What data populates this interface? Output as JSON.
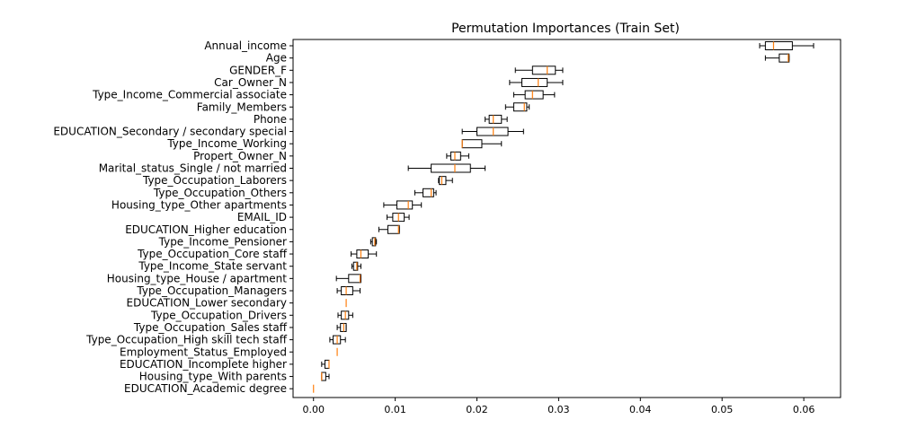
{
  "chart_data": {
    "type": "boxplot",
    "title": "Permutation Importances (Train Set)",
    "xlabel": "",
    "ylabel": "",
    "xlim": [
      -0.0025,
      0.0645
    ],
    "xticks": [
      "0.00",
      "0.01",
      "0.02",
      "0.03",
      "0.04",
      "0.05",
      "0.06"
    ],
    "xtick_values": [
      0.0,
      0.01,
      0.02,
      0.03,
      0.04,
      0.05,
      0.06
    ],
    "orientation": "horizontal",
    "grid": false,
    "colors": {
      "box": "#000000",
      "median": "#ff7f0e"
    },
    "features": [
      {
        "name": "Annual_income",
        "whislo": 0.0546,
        "q1": 0.0553,
        "med": 0.0563,
        "q3": 0.0586,
        "whishi": 0.0612
      },
      {
        "name": "Age",
        "whislo": 0.0553,
        "q1": 0.057,
        "med": 0.0581,
        "q3": 0.0582,
        "whishi": 0.0582
      },
      {
        "name": "GENDER_F",
        "whislo": 0.0247,
        "q1": 0.0268,
        "med": 0.0286,
        "q3": 0.0296,
        "whishi": 0.0305
      },
      {
        "name": "Car_Owner_N",
        "whislo": 0.024,
        "q1": 0.0255,
        "med": 0.0275,
        "q3": 0.0286,
        "whishi": 0.0305
      },
      {
        "name": "Type_Income_Commercial associate",
        "whislo": 0.0245,
        "q1": 0.0259,
        "med": 0.0268,
        "q3": 0.0281,
        "whishi": 0.0295
      },
      {
        "name": "Family_Members",
        "whislo": 0.0235,
        "q1": 0.0245,
        "med": 0.0258,
        "q3": 0.0261,
        "whishi": 0.0264
      },
      {
        "name": "Phone",
        "whislo": 0.021,
        "q1": 0.0215,
        "med": 0.022,
        "q3": 0.023,
        "whishi": 0.0237
      },
      {
        "name": "EDUCATION_Secondary / secondary special",
        "whislo": 0.0182,
        "q1": 0.02,
        "med": 0.022,
        "q3": 0.0238,
        "whishi": 0.0257
      },
      {
        "name": "Type_Income_Working",
        "whislo": 0.0182,
        "q1": 0.0182,
        "med": 0.0182,
        "q3": 0.0206,
        "whishi": 0.023
      },
      {
        "name": "Propert_Owner_N",
        "whislo": 0.0163,
        "q1": 0.0168,
        "med": 0.0173,
        "q3": 0.018,
        "whishi": 0.019
      },
      {
        "name": "Marital_status_Single / not married",
        "whislo": 0.0116,
        "q1": 0.0144,
        "med": 0.0173,
        "q3": 0.0192,
        "whishi": 0.021
      },
      {
        "name": "Type_Occupation_Laborers",
        "whislo": 0.0153,
        "q1": 0.0154,
        "med": 0.0157,
        "q3": 0.0162,
        "whishi": 0.017
      },
      {
        "name": "Type_Occupation_Others",
        "whislo": 0.0124,
        "q1": 0.0134,
        "med": 0.0144,
        "q3": 0.0147,
        "whishi": 0.015
      },
      {
        "name": "Housing_type_Other apartments",
        "whislo": 0.0086,
        "q1": 0.0102,
        "med": 0.0116,
        "q3": 0.0121,
        "whishi": 0.0132
      },
      {
        "name": "EMAIL_ID",
        "whislo": 0.009,
        "q1": 0.0097,
        "med": 0.0104,
        "q3": 0.0111,
        "whishi": 0.0117
      },
      {
        "name": "EDUCATION_Higher education",
        "whislo": 0.008,
        "q1": 0.0091,
        "med": 0.0104,
        "q3": 0.0105,
        "whishi": 0.0105
      },
      {
        "name": "Type_Income_Pensioner",
        "whislo": 0.007,
        "q1": 0.0072,
        "med": 0.0075,
        "q3": 0.0076,
        "whishi": 0.0077
      },
      {
        "name": "Type_Occupation_Core staff",
        "whislo": 0.0046,
        "q1": 0.0053,
        "med": 0.0058,
        "q3": 0.0067,
        "whishi": 0.0077
      },
      {
        "name": "Type_Income_State servant",
        "whislo": 0.0047,
        "q1": 0.0049,
        "med": 0.0053,
        "q3": 0.0054,
        "whishi": 0.0058
      },
      {
        "name": "Housing_type_House / apartment",
        "whislo": 0.0028,
        "q1": 0.0043,
        "med": 0.0057,
        "q3": 0.0058,
        "whishi": 0.0058
      },
      {
        "name": "Type_Occupation_Managers",
        "whislo": 0.0029,
        "q1": 0.0034,
        "med": 0.004,
        "q3": 0.0048,
        "whishi": 0.0057
      },
      {
        "name": "EDUCATION_Lower secondary",
        "whislo": 0.004,
        "q1": 0.004,
        "med": 0.004,
        "q3": 0.004,
        "whishi": 0.004
      },
      {
        "name": "Type_Occupation_Drivers",
        "whislo": 0.003,
        "q1": 0.0034,
        "med": 0.0039,
        "q3": 0.0043,
        "whishi": 0.0048
      },
      {
        "name": "Type_Occupation_Sales staff",
        "whislo": 0.0029,
        "q1": 0.0033,
        "med": 0.0037,
        "q3": 0.004,
        "whishi": 0.004
      },
      {
        "name": "Type_Occupation_High skill tech staff",
        "whislo": 0.002,
        "q1": 0.0024,
        "med": 0.0029,
        "q3": 0.0033,
        "whishi": 0.0039
      },
      {
        "name": "Employment_Status_Employed",
        "whislo": 0.0029,
        "q1": 0.0029,
        "med": 0.0029,
        "q3": 0.0029,
        "whishi": 0.0029
      },
      {
        "name": "EDUCATION_Incomplete higher",
        "whislo": 0.001,
        "q1": 0.0014,
        "med": 0.0019,
        "q3": 0.0019,
        "whishi": 0.0019
      },
      {
        "name": "Housing_type_With parents",
        "whislo": 0.001,
        "q1": 0.001,
        "med": 0.001,
        "q3": 0.0015,
        "whishi": 0.0019
      },
      {
        "name": "EDUCATION_Academic degree",
        "whislo": 0.0,
        "q1": 0.0,
        "med": 0.0,
        "q3": 0.0,
        "whishi": 0.0
      }
    ]
  }
}
